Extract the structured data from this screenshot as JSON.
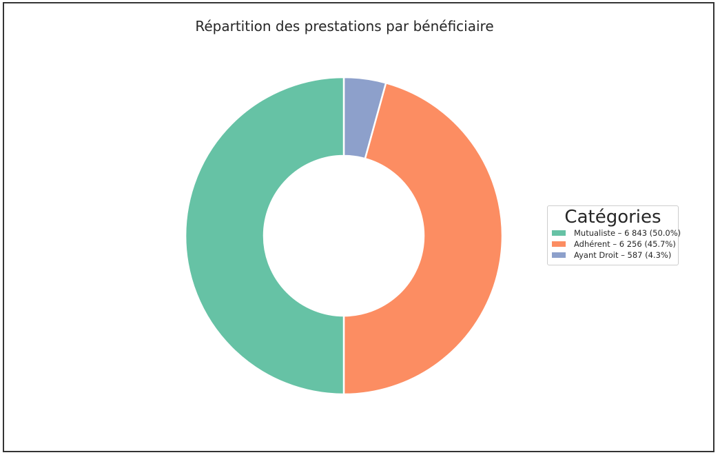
{
  "chart_data": {
    "type": "pie",
    "donut": true,
    "title": "Répartition des prestations par bénéficiaire",
    "categories": [
      "Mutualiste",
      "Adhérent",
      "Ayant Droit"
    ],
    "values": [
      6843,
      6256,
      587
    ],
    "percentages": [
      50.0,
      45.7,
      4.3
    ],
    "colors": [
      "#66c2a5",
      "#fc8d62",
      "#8da0cb"
    ],
    "start_angle_direction": "clockwise from top, last slice first",
    "legend": {
      "title": "Catégories",
      "placement": "right",
      "entries": [
        "Mutualiste – 6 843 (50.0%)",
        "Adhérent – 6 256 (45.7%)",
        "Ayant Droit – 587 (4.3%)"
      ]
    }
  }
}
